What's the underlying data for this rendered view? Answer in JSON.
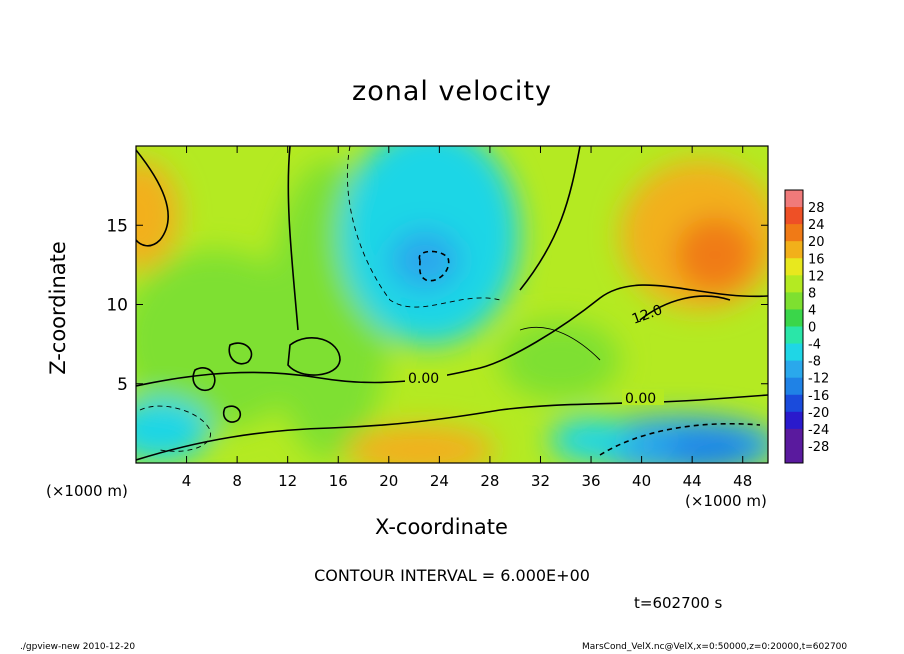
{
  "figure": {
    "title": "zonal velocity",
    "xlabel": "X-coordinate",
    "ylabel": "Z-coordinate",
    "x_unit": "(×1000 m)",
    "y_unit": "(×1000 m)",
    "contour_interval": "CONTOUR INTERVAL = 6.000E+00",
    "time": "t=602700 s",
    "footer_left": "./gpview-new   2010-12-20",
    "footer_right": "MarsCond_VelX.nc@VelX,x=0:50000,z=0:20000,t=602700"
  },
  "colors": {
    "c_neg28": "#5a1a9e",
    "c_neg24": "#2a1acc",
    "c_neg20": "#1a4bdc",
    "c_neg16": "#1f82e6",
    "c_neg12": "#2aa8ec",
    "c_neg8": "#1fd6e6",
    "c_neg4": "#2ae6a8",
    "c_0": "#3ad64a",
    "c_4": "#7ee030",
    "c_8": "#b4ea22",
    "c_12": "#e8e81e",
    "c_16": "#f2b01a",
    "c_20": "#f07a16",
    "c_24": "#ee5026",
    "c_28": "#f07a7a"
  },
  "chart_data": {
    "type": "heatmap",
    "title": "zonal velocity",
    "xlabel": "X-coordinate",
    "ylabel": "Z-coordinate",
    "x_unit": "(×1000 m)",
    "y_unit": "(×1000 m)",
    "xlim": [
      0,
      50
    ],
    "ylim": [
      0,
      20
    ],
    "x_ticks": [
      4,
      8,
      12,
      16,
      20,
      24,
      28,
      32,
      36,
      40,
      44,
      48
    ],
    "y_ticks": [
      5,
      10,
      15
    ],
    "colorbar_ticks": [
      28,
      24,
      20,
      16,
      12,
      8,
      4,
      0,
      -4,
      -8,
      -12,
      -16,
      -20,
      -24,
      -28
    ],
    "contour_interval": 6.0,
    "contour_labels": [
      "0.00",
      "0.00",
      "12.0"
    ],
    "time": "t=602700 s",
    "regions": [
      {
        "desc": "upper-left warm",
        "x": 1,
        "z": 16,
        "value": 16
      },
      {
        "desc": "upper-right max",
        "x": 45,
        "z": 13,
        "value": 20
      },
      {
        "desc": "upper-middle min",
        "x": 23,
        "z": 12,
        "value": -12
      },
      {
        "desc": "lower-middle warm",
        "x": 23,
        "z": 1,
        "value": 16
      },
      {
        "desc": "lower-right min",
        "x": 45,
        "z": 1.5,
        "value": -20
      },
      {
        "desc": "lower-left cool",
        "x": 2,
        "z": 2,
        "value": -10
      }
    ]
  }
}
